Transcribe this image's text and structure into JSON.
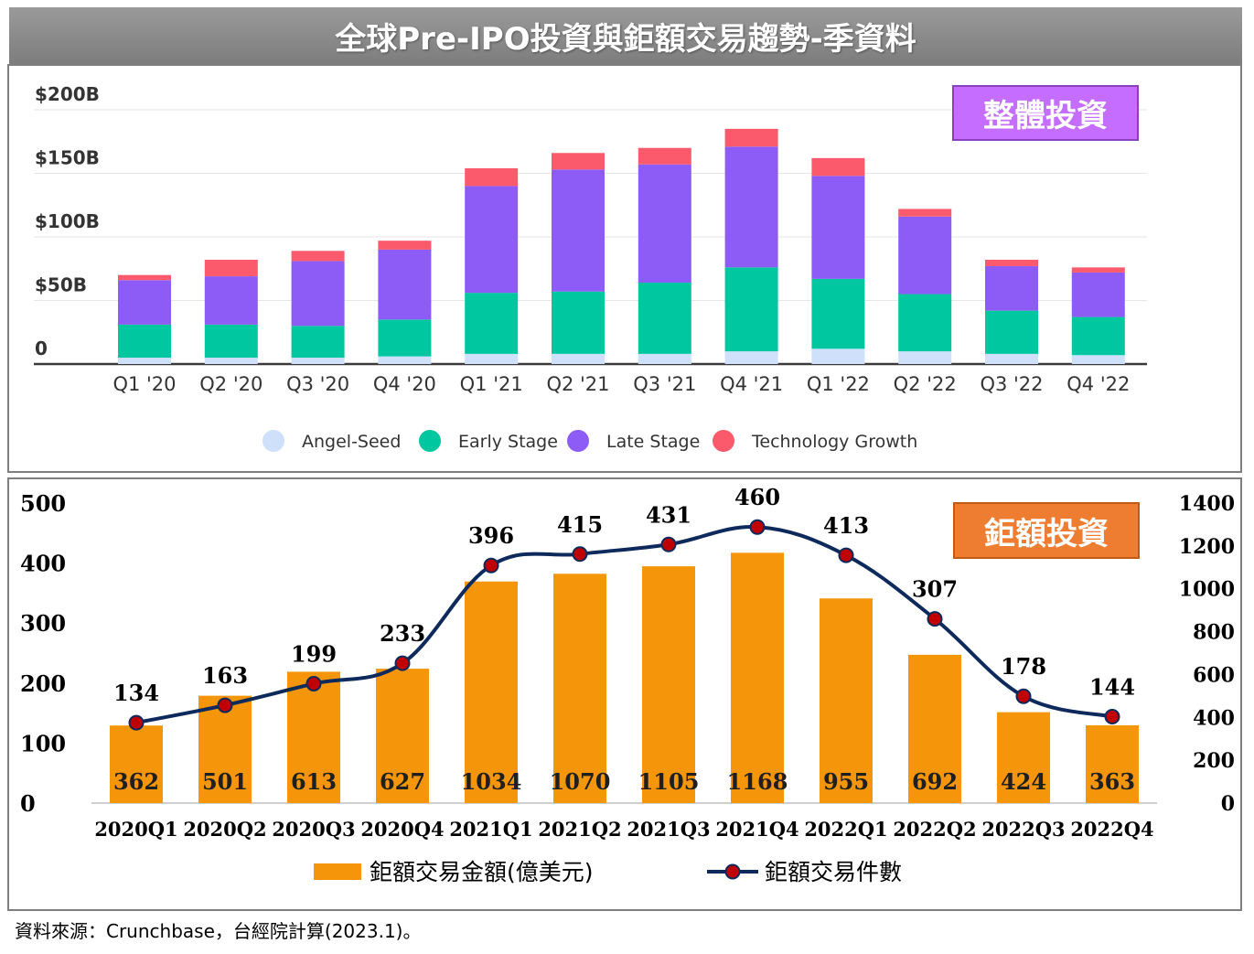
{
  "title": "全球Pre-IPO投資與鉅額交易趨勢-季資料",
  "source": "資料來源：Crunchbase，台經院計算(2023.1)。",
  "badges": {
    "overall": "整體投資",
    "mega": "鉅額投資"
  },
  "colors": {
    "angel_seed": "#cfe0fb",
    "early_stage": "#00c7a0",
    "late_stage": "#8d5cf7",
    "technology_growth": "#fa5a6c",
    "bar_orange": "#f5960a",
    "line_navy": "#0e2a5c",
    "marker_red": "#c00000"
  },
  "chart_data": [
    {
      "type": "bar",
      "stacked": true,
      "categories": [
        "Q1 '20",
        "Q2 '20",
        "Q3 '20",
        "Q4 '20",
        "Q1 '21",
        "Q2 '21",
        "Q3 '21",
        "Q4 '21",
        "Q1 '22",
        "Q2 '22",
        "Q3 '22",
        "Q4 '22"
      ],
      "ylim": [
        0,
        200
      ],
      "yticks": [
        0,
        50,
        100,
        150,
        200
      ],
      "ytick_labels": [
        "0",
        "$50B",
        "$100B",
        "$150B",
        "$200B"
      ],
      "grid": true,
      "legend_position": "bottom",
      "series": [
        {
          "name": "Angel-Seed",
          "color_key": "angel_seed",
          "values": [
            5,
            5,
            5,
            6,
            8,
            8,
            8,
            10,
            12,
            10,
            8,
            7
          ]
        },
        {
          "name": "Early Stage",
          "color_key": "early_stage",
          "values": [
            26,
            26,
            25,
            29,
            48,
            49,
            56,
            66,
            55,
            45,
            34,
            30
          ]
        },
        {
          "name": "Late Stage",
          "color_key": "late_stage",
          "values": [
            35,
            38,
            51,
            55,
            84,
            96,
            93,
            95,
            81,
            61,
            35,
            35
          ]
        },
        {
          "name": "Technology Growth",
          "color_key": "technology_growth",
          "values": [
            4,
            13,
            8,
            7,
            14,
            13,
            13,
            14,
            14,
            6,
            5,
            4
          ]
        }
      ]
    },
    {
      "type": "bar",
      "combo": "bar+line",
      "categories": [
        "2020Q1",
        "2020Q2",
        "2020Q3",
        "2020Q4",
        "2021Q1",
        "2021Q2",
        "2021Q3",
        "2021Q4",
        "2022Q1",
        "2022Q2",
        "2022Q3",
        "2022Q4"
      ],
      "ylim_left": [
        0,
        500
      ],
      "yticks_left": [
        0,
        100,
        200,
        300,
        400,
        500
      ],
      "ylim_right": [
        0,
        1400
      ],
      "yticks_right": [
        0,
        200,
        400,
        600,
        800,
        1000,
        1200,
        1400
      ],
      "legend_position": "bottom",
      "series": [
        {
          "name": "鉅額交易金額(億美元)",
          "axis": "right",
          "kind": "bar",
          "color_key": "bar_orange",
          "values": [
            362,
            501,
            613,
            627,
            1034,
            1070,
            1105,
            1168,
            955,
            692,
            424,
            363
          ]
        },
        {
          "name": "鉅額交易件數",
          "axis": "left",
          "kind": "line",
          "color_key": "line_navy",
          "values": [
            134,
            163,
            199,
            233,
            396,
            415,
            431,
            460,
            413,
            307,
            178,
            144
          ]
        }
      ]
    }
  ]
}
